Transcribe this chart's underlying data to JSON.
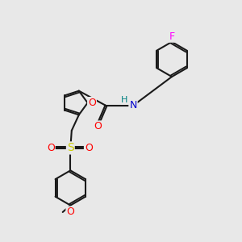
{
  "background_color": "#e8e8e8",
  "fig_size": [
    3.0,
    3.0
  ],
  "dpi": 100,
  "bond_color": "#1a1a1a",
  "bond_width": 1.5,
  "atom_colors": {
    "O": "#ff0000",
    "N": "#0000cd",
    "S": "#cccc00",
    "F": "#ff00ff",
    "H": "#008080",
    "C": "#1a1a1a"
  },
  "font_size": 9,
  "font_size_small": 8,
  "xlim": [
    0,
    10
  ],
  "ylim": [
    0,
    10
  ]
}
